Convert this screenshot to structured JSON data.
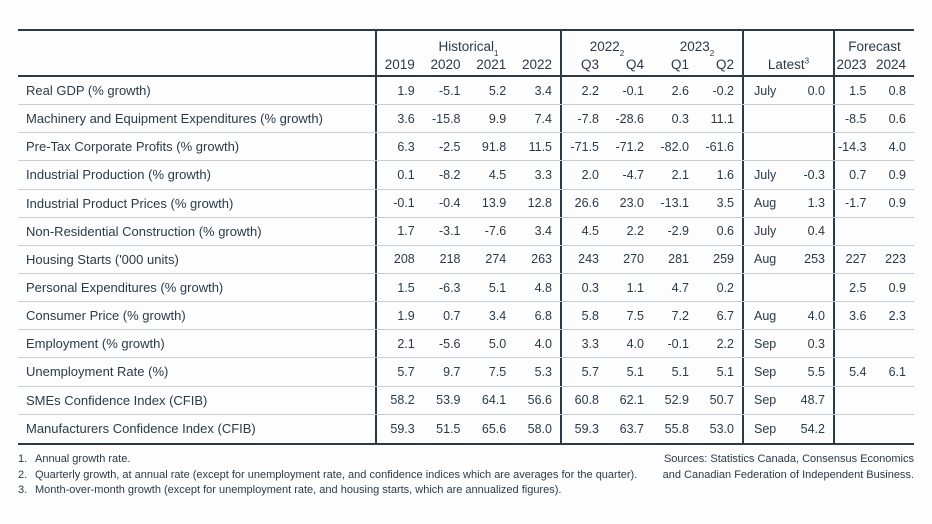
{
  "chart_data": {
    "type": "table",
    "column_groups": {
      "historical": {
        "label": "Historical",
        "footnote_ref": "1",
        "years": [
          "2019",
          "2020",
          "2021",
          "2022"
        ]
      },
      "q2022": {
        "label": "2022",
        "footnote_ref": "2",
        "quarters": [
          "Q3",
          "Q4"
        ]
      },
      "q2023": {
        "label": "2023",
        "footnote_ref": "2",
        "quarters": [
          "Q1",
          "Q2"
        ]
      },
      "latest": {
        "label": "Latest",
        "footnote_ref": "3"
      },
      "forecast": {
        "label": "Forecast",
        "years": [
          "2023",
          "2024"
        ]
      }
    },
    "rows": [
      {
        "label": "Real GDP (% growth)",
        "historical": [
          "1.9",
          "-5.1",
          "5.2",
          "3.4"
        ],
        "quarters": [
          "2.2",
          "-0.1",
          "2.6",
          "-0.2"
        ],
        "latest_month": "July",
        "latest_value": "0.0",
        "forecast": [
          "1.5",
          "0.8"
        ]
      },
      {
        "label": "Machinery and Equipment Expenditures (% growth)",
        "historical": [
          "3.6",
          "-15.8",
          "9.9",
          "7.4"
        ],
        "quarters": [
          "-7.8",
          "-28.6",
          "0.3",
          "11.1"
        ],
        "latest_month": "",
        "latest_value": "",
        "forecast": [
          "-8.5",
          "0.6"
        ]
      },
      {
        "label": "Pre-Tax Corporate Profits (% growth)",
        "historical": [
          "6.3",
          "-2.5",
          "91.8",
          "11.5"
        ],
        "quarters": [
          "-71.5",
          "-71.2",
          "-82.0",
          "-61.6"
        ],
        "latest_month": "",
        "latest_value": "",
        "forecast": [
          "-14.3",
          "4.0"
        ]
      },
      {
        "label": "Industrial Production (% growth)",
        "historical": [
          "0.1",
          "-8.2",
          "4.5",
          "3.3"
        ],
        "quarters": [
          "2.0",
          "-4.7",
          "2.1",
          "1.6"
        ],
        "latest_month": "July",
        "latest_value": "-0.3",
        "forecast": [
          "0.7",
          "0.9"
        ]
      },
      {
        "label": "Industrial Product Prices (% growth)",
        "historical": [
          "-0.1",
          "-0.4",
          "13.9",
          "12.8"
        ],
        "quarters": [
          "26.6",
          "23.0",
          "-13.1",
          "3.5"
        ],
        "latest_month": "Aug",
        "latest_value": "1.3",
        "forecast": [
          "-1.7",
          "0.9"
        ]
      },
      {
        "label": "Non-Residential Construction (% growth)",
        "historical": [
          "1.7",
          "-3.1",
          "-7.6",
          "3.4"
        ],
        "quarters": [
          "4.5",
          "2.2",
          "-2.9",
          "0.6"
        ],
        "latest_month": "July",
        "latest_value": "0.4",
        "forecast": [
          "",
          ""
        ]
      },
      {
        "label": "Housing Starts ('000 units)",
        "historical": [
          "208",
          "218",
          "274",
          "263"
        ],
        "quarters": [
          "243",
          "270",
          "281",
          "259"
        ],
        "latest_month": "Aug",
        "latest_value": "253",
        "forecast": [
          "227",
          "223"
        ]
      },
      {
        "label": "Personal Expenditures (% growth)",
        "historical": [
          "1.5",
          "-6.3",
          "5.1",
          "4.8"
        ],
        "quarters": [
          "0.3",
          "1.1",
          "4.7",
          "0.2"
        ],
        "latest_month": "",
        "latest_value": "",
        "forecast": [
          "2.5",
          "0.9"
        ]
      },
      {
        "label": "Consumer Price (% growth)",
        "historical": [
          "1.9",
          "0.7",
          "3.4",
          "6.8"
        ],
        "quarters": [
          "5.8",
          "7.5",
          "7.2",
          "6.7"
        ],
        "latest_month": "Aug",
        "latest_value": "4.0",
        "forecast": [
          "3.6",
          "2.3"
        ]
      },
      {
        "label": "Employment (% growth)",
        "historical": [
          "2.1",
          "-5.6",
          "5.0",
          "4.0"
        ],
        "quarters": [
          "3.3",
          "4.0",
          "-0.1",
          "2.2"
        ],
        "latest_month": "Sep",
        "latest_value": "0.3",
        "forecast": [
          "",
          ""
        ]
      },
      {
        "label": "Unemployment Rate (%)",
        "historical": [
          "5.7",
          "9.7",
          "7.5",
          "5.3"
        ],
        "quarters": [
          "5.7",
          "5.1",
          "5.1",
          "5.1"
        ],
        "latest_month": "Sep",
        "latest_value": "5.5",
        "forecast": [
          "5.4",
          "6.1"
        ]
      },
      {
        "label": "SMEs Confidence Index (CFIB)",
        "historical": [
          "58.2",
          "53.9",
          "64.1",
          "56.6"
        ],
        "quarters": [
          "60.8",
          "62.1",
          "52.9",
          "50.7"
        ],
        "latest_month": "Sep",
        "latest_value": "48.7",
        "forecast": [
          "",
          ""
        ]
      },
      {
        "label": "Manufacturers Confidence Index (CFIB)",
        "historical": [
          "59.3",
          "51.5",
          "65.6",
          "58.0"
        ],
        "quarters": [
          "59.3",
          "63.7",
          "55.8",
          "53.0"
        ],
        "latest_month": "Sep",
        "latest_value": "54.2",
        "forecast": [
          "",
          ""
        ]
      }
    ]
  },
  "footnotes": [
    {
      "num": "1.",
      "text": "Annual growth rate."
    },
    {
      "num": "2.",
      "text": "Quarterly growth, at annual rate (except for unemployment rate, and confidence indices which are averages for the quarter)."
    },
    {
      "num": "3.",
      "text": "Month-over-month growth (except for unemployment rate, and housing starts, which are annualized figures)."
    }
  ],
  "sources": {
    "line1": "Sources: Statistics Canada, Consensus Economics",
    "line2": "and Canadian Federation of Independent Business."
  },
  "colors": {
    "text": "#2b3a48",
    "thick_border": "#2b3a48",
    "thin_border": "#c9ced3",
    "background": "#fdfdfd"
  }
}
